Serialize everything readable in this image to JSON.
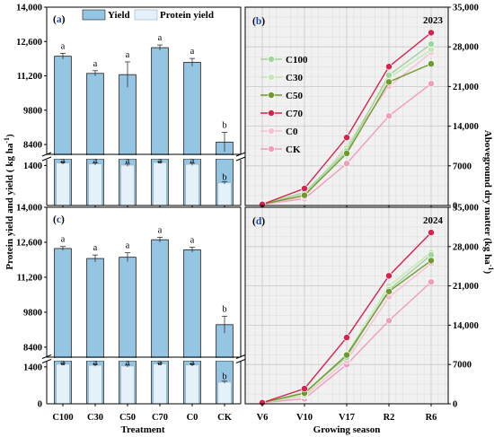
{
  "chart_data": [
    {
      "panel": "(a)",
      "type": "bar",
      "categories": [
        "C100",
        "C30",
        "C50",
        "C70",
        "C0",
        "CK"
      ],
      "legend": [
        "Yield",
        "Protein yield"
      ],
      "series": [
        {
          "name": "Yield",
          "values": [
            12000,
            11300,
            11250,
            12350,
            11750,
            8500
          ],
          "errors": [
            120,
            110,
            520,
            110,
            160,
            400
          ],
          "letters": [
            "a",
            "a",
            "a",
            "a",
            "a",
            "b"
          ]
        },
        {
          "name": "Protein yield",
          "values": [
            1480,
            1450,
            1410,
            1500,
            1440,
            790
          ],
          "errors": [
            40,
            40,
            40,
            35,
            40,
            40
          ],
          "letters": [
            "a",
            "a",
            "a",
            "a",
            "a",
            "b"
          ]
        }
      ],
      "ylim_upper": [
        8000,
        14000
      ],
      "ylim_lower": [
        0,
        1600
      ],
      "yticks_upper": [
        "8400",
        "9800",
        "11,200",
        "12,600",
        "14,000"
      ],
      "yticks_lower": [
        "0",
        "1400"
      ]
    },
    {
      "panel": "(b)",
      "type": "line",
      "annotation": "2023",
      "categories": [
        "V6",
        "V10",
        "V17",
        "R2",
        "R6"
      ],
      "series": [
        {
          "name": "C100",
          "values": [
            200,
            2300,
            9600,
            23000,
            28500
          ]
        },
        {
          "name": "C30",
          "values": [
            200,
            1900,
            10200,
            22500,
            27500
          ]
        },
        {
          "name": "C50",
          "values": [
            200,
            1800,
            9200,
            21800,
            25000
          ]
        },
        {
          "name": "C70",
          "values": [
            200,
            3000,
            12000,
            24500,
            30500
          ]
        },
        {
          "name": "C0",
          "values": [
            200,
            1500,
            10500,
            21000,
            27000
          ]
        },
        {
          "name": "CK",
          "values": [
            200,
            1200,
            7400,
            15800,
            21500
          ]
        }
      ],
      "ylim": [
        0,
        35000
      ],
      "yticks": [
        "0",
        "7000",
        "14,000",
        "21,000",
        "28,000",
        "35,000"
      ]
    },
    {
      "panel": "(c)",
      "type": "bar",
      "categories": [
        "C100",
        "C30",
        "C50",
        "C70",
        "C0",
        "CK"
      ],
      "legend": [
        "Yield",
        "Protein yield"
      ],
      "series": [
        {
          "name": "Yield",
          "values": [
            12350,
            11950,
            12000,
            12700,
            12300,
            9300
          ],
          "errors": [
            80,
            140,
            180,
            100,
            100,
            340
          ],
          "letters": [
            "a",
            "a",
            "a",
            "a",
            "a",
            "b"
          ]
        },
        {
          "name": "Protein yield",
          "values": [
            1500,
            1460,
            1430,
            1510,
            1470,
            820
          ],
          "errors": [
            40,
            40,
            40,
            40,
            40,
            40
          ],
          "letters": [
            "a",
            "a",
            "a",
            "a",
            "a",
            "b"
          ]
        }
      ],
      "ylim_upper": [
        8000,
        14000
      ],
      "ylim_lower": [
        0,
        1600
      ],
      "yticks_upper": [
        "8400",
        "9800",
        "11,200",
        "12,600",
        "14,000"
      ],
      "yticks_lower": [
        "0",
        "1400"
      ]
    },
    {
      "panel": "(d)",
      "type": "line",
      "annotation": "2024",
      "categories": [
        "V6",
        "V10",
        "V17",
        "R2",
        "R6"
      ],
      "series": [
        {
          "name": "C100",
          "values": [
            200,
            2000,
            8300,
            20300,
            26500
          ]
        },
        {
          "name": "C30",
          "values": [
            200,
            1500,
            8800,
            21000,
            27000
          ]
        },
        {
          "name": "C50",
          "values": [
            200,
            1900,
            8700,
            20000,
            25500
          ]
        },
        {
          "name": "C70",
          "values": [
            200,
            2700,
            11800,
            22800,
            30500
          ]
        },
        {
          "name": "C0",
          "values": [
            200,
            1400,
            7700,
            19000,
            25000
          ]
        },
        {
          "name": "CK",
          "values": [
            200,
            900,
            7000,
            14800,
            21700
          ]
        }
      ],
      "ylim": [
        0,
        35000
      ],
      "yticks": [
        "0",
        "7000",
        "14,000",
        "21,000",
        "28,000",
        "35,000"
      ]
    }
  ],
  "axis_titles": {
    "left_y": "Protein yield and yield ( kg ha",
    "left_y_exp": "-1",
    "left_y_end": ")",
    "right_y": "Aboveground dry matter (kg ha",
    "right_y_exp": "-1",
    "right_y_end": ")",
    "left_x": "Treatment",
    "right_x": "Growing season"
  },
  "series_colors": {
    "C100": "#9fd49a",
    "C30": "#c3e7b6",
    "C50": "#6e9a2c",
    "C70": "#d6234f",
    "C0": "#f8bfd2",
    "CK": "#f19bbd"
  },
  "bar_colors": {
    "Yield": "#94c6e3",
    "Protein yield": "#e4f1fb"
  },
  "panel_label_color": "#1f48b0"
}
